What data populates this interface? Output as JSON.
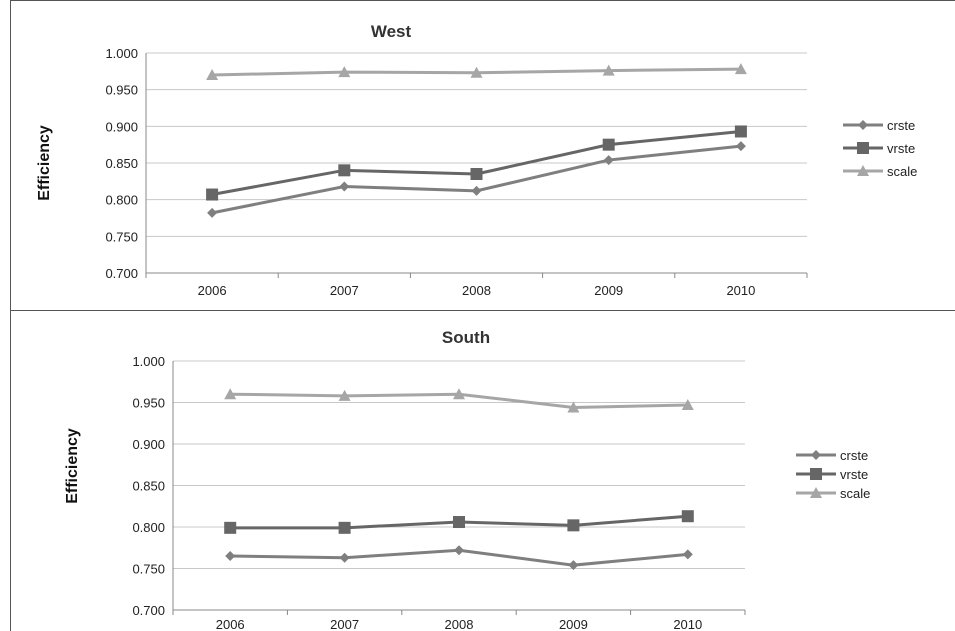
{
  "colors": {
    "crste": "#7f7f7f",
    "vrste": "#666666",
    "scale": "#a6a6a6",
    "grid": "#c8c8c8",
    "axis": "#888888"
  },
  "chart_data": [
    {
      "type": "line",
      "title": "West",
      "ylabel": "Efficiency",
      "xlabel": "",
      "categories": [
        "2006",
        "2007",
        "2008",
        "2009",
        "2010"
      ],
      "yticks": [
        "0.700",
        "0.750",
        "0.800",
        "0.850",
        "0.900",
        "0.950",
        "1.000"
      ],
      "ylim": [
        0.7,
        1.0
      ],
      "grid": true,
      "legend_position": "right",
      "series": [
        {
          "name": "crste",
          "marker": "diamond",
          "values": [
            0.782,
            0.818,
            0.812,
            0.854,
            0.873
          ]
        },
        {
          "name": "vrste",
          "marker": "square",
          "values": [
            0.807,
            0.84,
            0.835,
            0.875,
            0.893
          ]
        },
        {
          "name": "scale",
          "marker": "triangle",
          "values": [
            0.97,
            0.974,
            0.973,
            0.976,
            0.978
          ]
        }
      ]
    },
    {
      "type": "line",
      "title": "South",
      "ylabel": "Efficiency",
      "xlabel": "",
      "categories": [
        "2006",
        "2007",
        "2008",
        "2009",
        "2010"
      ],
      "yticks": [
        "0.700",
        "0.750",
        "0.800",
        "0.850",
        "0.900",
        "0.950",
        "1.000"
      ],
      "ylim": [
        0.7,
        1.0
      ],
      "grid": true,
      "legend_position": "right",
      "series": [
        {
          "name": "crste",
          "marker": "diamond",
          "values": [
            0.765,
            0.763,
            0.772,
            0.754,
            0.767
          ]
        },
        {
          "name": "vrste",
          "marker": "square",
          "values": [
            0.799,
            0.799,
            0.806,
            0.802,
            0.813
          ]
        },
        {
          "name": "scale",
          "marker": "triangle",
          "values": [
            0.96,
            0.958,
            0.96,
            0.944,
            0.947
          ]
        }
      ]
    }
  ]
}
